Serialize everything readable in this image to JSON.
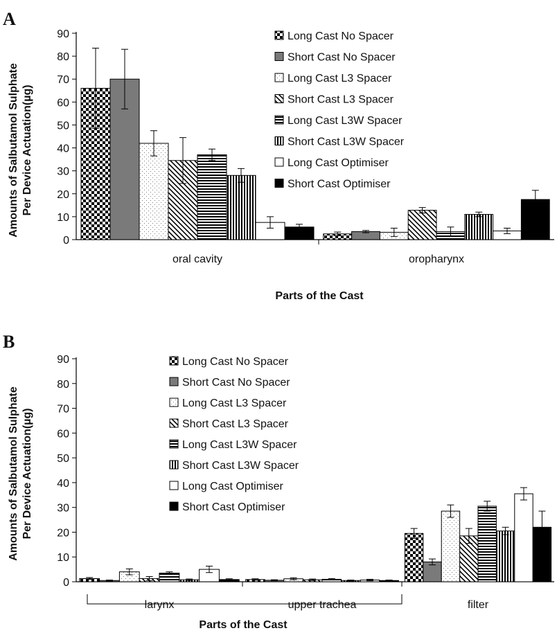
{
  "series_names": [
    "Long Cast No Spacer",
    "Short Cast No Spacer",
    "Long Cast L3 Spacer",
    "Short Cast L3 Spacer",
    "Long Cast L3W Spacer",
    "Short Cast L3W Spacer",
    "Long Cast Optimiser",
    "Short Cast Optimiser"
  ],
  "chart_data": [
    {
      "type": "bar",
      "panel": "A",
      "xlabel": "Parts of the Cast",
      "ylabel_lines": [
        "Amounts of Salbutamol Sulphate",
        "Per Device Actuation(µg)"
      ],
      "ylim": [
        0,
        90
      ],
      "yticks": [
        0,
        10,
        20,
        30,
        40,
        50,
        60,
        70,
        80,
        90
      ],
      "legend_position": "top-right",
      "categories": [
        "oral cavity",
        "oropharynx"
      ],
      "series": [
        {
          "name": "Long Cast No Spacer",
          "values": [
            66,
            2.5
          ],
          "errors": [
            17.5,
            0.8
          ]
        },
        {
          "name": "Short Cast No Spacer",
          "values": [
            70,
            3.5
          ],
          "errors": [
            13,
            0.5
          ]
        },
        {
          "name": "Long Cast L3 Spacer",
          "values": [
            42,
            3.2
          ],
          "errors": [
            5.5,
            1.8
          ]
        },
        {
          "name": "Short Cast L3 Spacer",
          "values": [
            34.5,
            12.8
          ],
          "errors": [
            10,
            1.2
          ]
        },
        {
          "name": "Long Cast L3W Spacer",
          "values": [
            37,
            3.5
          ],
          "errors": [
            2.5,
            2
          ]
        },
        {
          "name": "Short Cast L3W Spacer",
          "values": [
            28,
            11
          ],
          "errors": [
            3,
            1
          ]
        },
        {
          "name": "Long Cast Optimiser",
          "values": [
            7.5,
            3.8
          ],
          "errors": [
            2.5,
            1.2
          ]
        },
        {
          "name": "Short Cast Optimiser",
          "values": [
            5.5,
            17.5
          ],
          "errors": [
            1.2,
            4
          ]
        }
      ]
    },
    {
      "type": "bar",
      "panel": "B",
      "xlabel": "Parts of the Cast",
      "ylabel_lines": [
        "Amounts of Salbutamol Sulphate",
        "Per Device Actuation(µg)"
      ],
      "ylim": [
        0,
        90
      ],
      "yticks": [
        0,
        10,
        20,
        30,
        40,
        50,
        60,
        70,
        80,
        90
      ],
      "legend_position": "top-center",
      "categories": [
        "larynx",
        "upper trachea",
        "filter"
      ],
      "series": [
        {
          "name": "Long Cast No Spacer",
          "values": [
            1.3,
            0.9,
            19.5
          ],
          "errors": [
            0.4,
            0.3,
            2
          ]
        },
        {
          "name": "Short Cast No Spacer",
          "values": [
            0.5,
            0.6,
            8
          ],
          "errors": [
            0.2,
            0.2,
            1.2
          ]
        },
        {
          "name": "Long Cast L3 Spacer",
          "values": [
            4,
            1.2,
            28.5
          ],
          "errors": [
            1.2,
            0.4,
            2.5
          ]
        },
        {
          "name": "Short Cast L3 Spacer",
          "values": [
            1.3,
            0.8,
            18.5
          ],
          "errors": [
            0.8,
            0.3,
            3
          ]
        },
        {
          "name": "Long Cast L3W Spacer",
          "values": [
            3.5,
            1,
            30.5
          ],
          "errors": [
            0.5,
            0.3,
            2
          ]
        },
        {
          "name": "Short Cast L3W Spacer",
          "values": [
            0.8,
            0.5,
            20.5
          ],
          "errors": [
            0.3,
            0.2,
            1.5
          ]
        },
        {
          "name": "Long Cast Optimiser",
          "values": [
            5,
            0.7,
            35.5
          ],
          "errors": [
            1.3,
            0.3,
            2.5
          ]
        },
        {
          "name": "Short Cast Optimiser",
          "values": [
            0.9,
            0.5,
            22
          ],
          "errors": [
            0.3,
            0.2,
            6.5
          ]
        }
      ]
    }
  ]
}
